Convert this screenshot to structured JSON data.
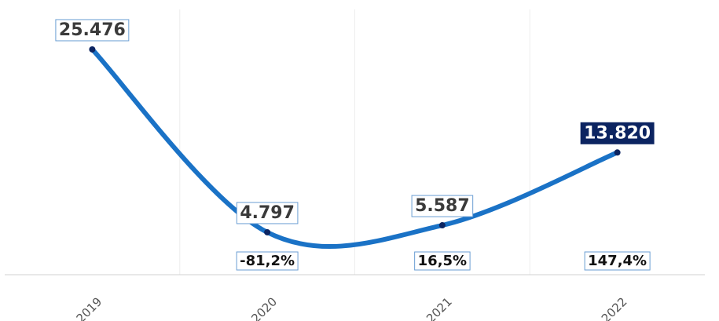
{
  "chart_data": {
    "type": "line",
    "categories": [
      "2019",
      "2020",
      "2021",
      "2022"
    ],
    "series": [
      {
        "color": "#1a72c6",
        "marker_color": "#0c2461",
        "values": [
          25476,
          4797,
          5587,
          13820
        ],
        "value_labels": [
          "25.476",
          "4.797",
          "5.587",
          "13.820"
        ]
      }
    ],
    "changes": [
      null,
      -81.2,
      16.5,
      147.4
    ],
    "change_labels": [
      null,
      "-81,2%",
      "16,5%",
      "147,4%"
    ],
    "ylim": [
      0,
      30000
    ],
    "highlight_label_color": "#0c2461",
    "grid": true
  }
}
